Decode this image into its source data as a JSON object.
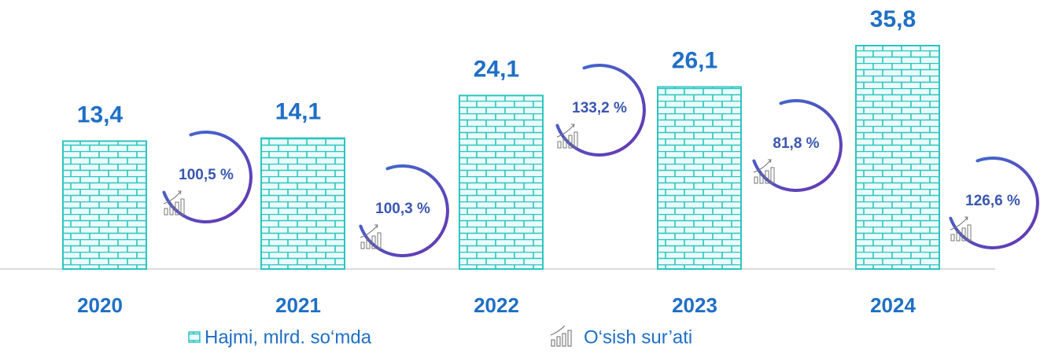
{
  "chart_data": {
    "type": "bar",
    "categories": [
      "2020",
      "2021",
      "2022",
      "2023",
      "2024"
    ],
    "series": [
      {
        "name": "Hajmi, mlrd. so‘mda",
        "color": "#2ec4c0",
        "values": [
          13.4,
          14.1,
          24.1,
          26.1,
          35.8
        ],
        "value_labels": [
          "13,4",
          "14,1",
          "24,1",
          "26,1",
          "35,8"
        ]
      },
      {
        "name": "O‘sish sur’ati",
        "color": "#5a4fc0",
        "values": [
          100.5,
          100.3,
          133.2,
          81.8,
          126.6
        ],
        "value_labels": [
          "100,5 %",
          "100,3 %",
          "133,2 %",
          "81,8 %",
          "126,6 %"
        ]
      }
    ]
  }
}
